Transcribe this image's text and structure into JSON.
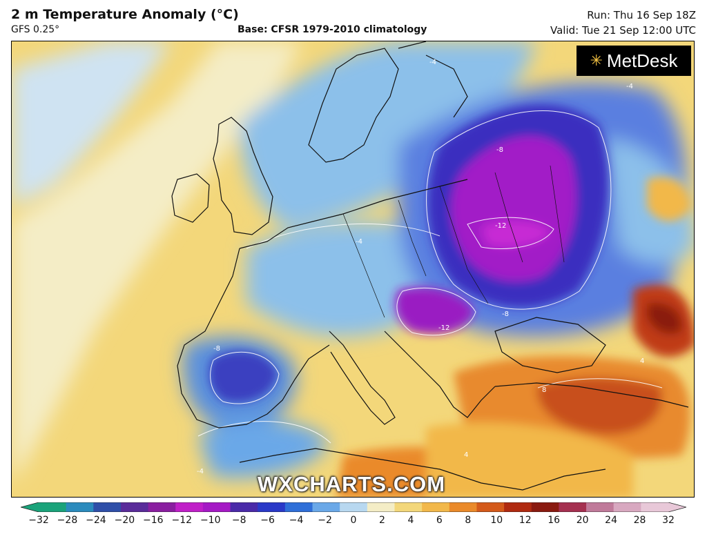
{
  "header": {
    "title": "2 m Temperature Anomaly (°C)",
    "model": "GFS 0.25°",
    "base": "Base: CFSR 1979-2010 climatology",
    "run": "Run: Thu 16 Sep 18Z",
    "valid": "Valid: Tue 21 Sep 12:00 UTC"
  },
  "brand": {
    "logo_text": "MetDesk",
    "watermark": "WXCHARTS.COM"
  },
  "contour_labels": [
    "-4",
    "-8",
    "-12",
    "-4",
    "-8",
    "-12",
    "-8",
    "-4",
    "4",
    "8",
    "4",
    "-4"
  ],
  "colorbar": {
    "ticks": [
      "−32",
      "−28",
      "−24",
      "−20",
      "−16",
      "−12",
      "−10",
      "−8",
      "−6",
      "−4",
      "−2",
      "0",
      "2",
      "4",
      "6",
      "8",
      "10",
      "12",
      "16",
      "20",
      "24",
      "28",
      "32"
    ],
    "colors": [
      "#1aa37a",
      "#2b8bbd",
      "#2f4fa8",
      "#5a2c9a",
      "#8a1ea0",
      "#c01fc8",
      "#a519c5",
      "#4a2aa8",
      "#2a39c8",
      "#2f6fd8",
      "#6aa8e8",
      "#b8d8f0",
      "#f4edc6",
      "#f3d77a",
      "#f2b84a",
      "#ea8a2a",
      "#d45a1a",
      "#b02a10",
      "#8a1a10",
      "#a53050",
      "#c07a9a",
      "#d8a8c0",
      "#e8c8d8"
    ]
  }
}
